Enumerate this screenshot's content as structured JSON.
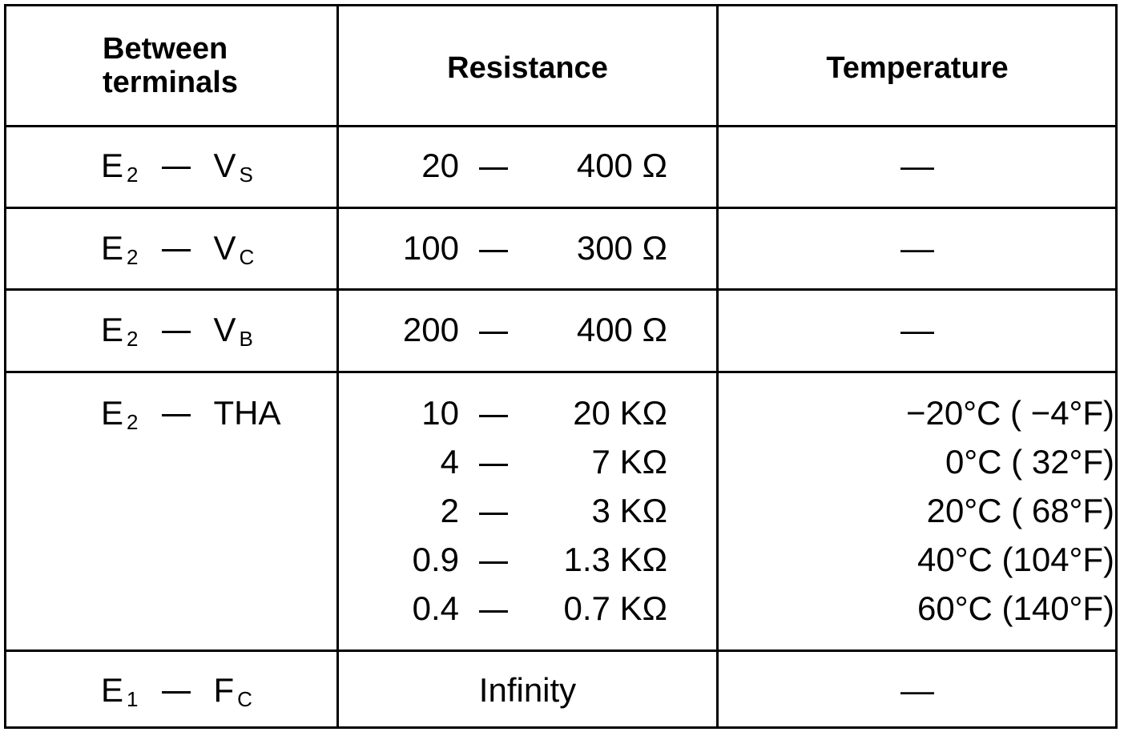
{
  "headers": {
    "col1": "Between terminals",
    "col2": "Resistance",
    "col3": "Temperature"
  },
  "rows": [
    {
      "from": "E",
      "from_sub": "2",
      "to": "V",
      "to_sub": "S",
      "res_from": "20",
      "res_to": "400 Ω",
      "temp": "—"
    },
    {
      "from": "E",
      "from_sub": "2",
      "to": "V",
      "to_sub": "C",
      "res_from": "100",
      "res_to": "300 Ω",
      "temp": "—"
    },
    {
      "from": "E",
      "from_sub": "2",
      "to": "V",
      "to_sub": "B",
      "res_from": "200",
      "res_to": "400 Ω",
      "temp": "—"
    },
    {
      "from": "E",
      "from_sub": "2",
      "to": "THA",
      "to_sub": "",
      "res_lines": [
        {
          "from": "10",
          "to": "20 KΩ"
        },
        {
          "from": "4",
          "to": "7 KΩ"
        },
        {
          "from": "2",
          "to": "3 KΩ"
        },
        {
          "from": "0.9",
          "to": "1.3 KΩ"
        },
        {
          "from": "0.4",
          "to": "0.7 KΩ"
        }
      ],
      "temp_lines": [
        "−20°C ( −4°F)",
        "0°C ( 32°F)",
        "20°C ( 68°F)",
        "40°C (104°F)",
        "60°C (140°F)"
      ]
    },
    {
      "from": "E",
      "from_sub": "1",
      "to": "F",
      "to_sub": "C",
      "res_text": "Infinity",
      "temp": "—"
    }
  ]
}
